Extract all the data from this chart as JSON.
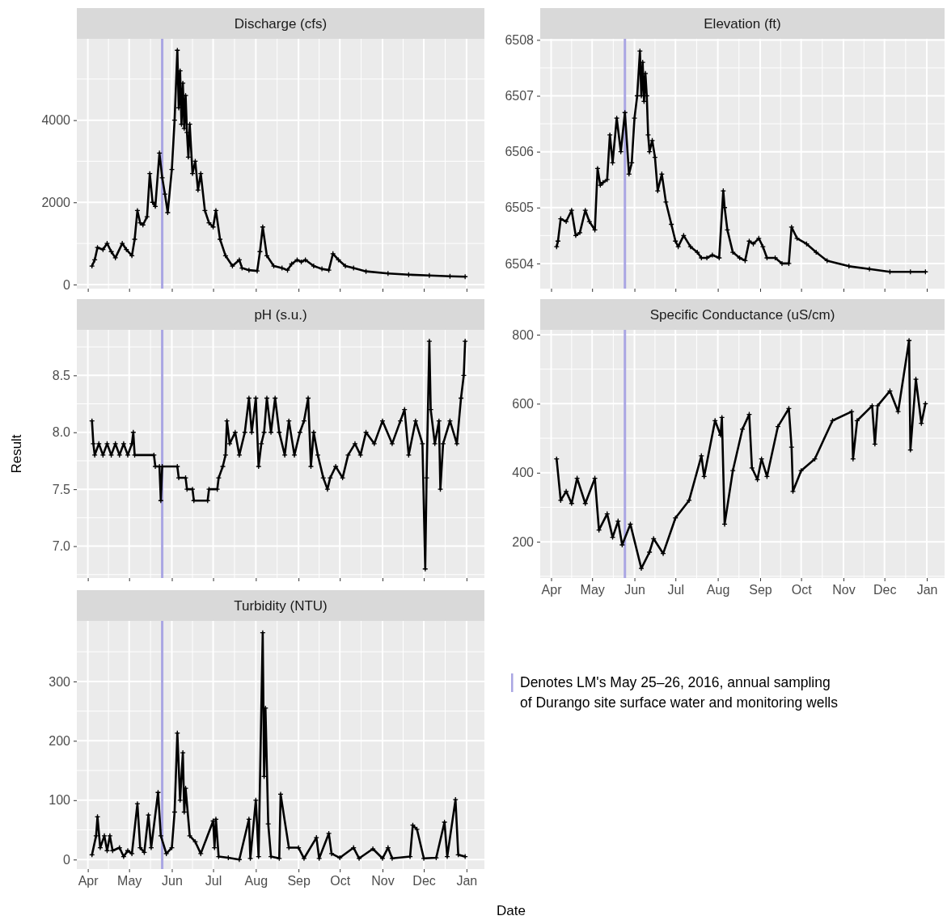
{
  "chart_data": [
    {
      "type": "line",
      "title": "Discharge (cfs)",
      "tick_labels": "y",
      "grid": true,
      "marker": "cross",
      "ylim": [
        -100,
        5980
      ],
      "yticks": [
        0,
        2000,
        4000
      ],
      "xlim": [
        "2016-03-24",
        "2017-01-14"
      ],
      "xticks": [
        {
          "value": "2016-04-01",
          "label": null
        },
        {
          "value": "2016-05-01",
          "label": null
        },
        {
          "value": "2016-06-01",
          "label": null
        },
        {
          "value": "2016-07-01",
          "label": null
        },
        {
          "value": "2016-08-01",
          "label": null
        },
        {
          "value": "2016-09-01",
          "label": null
        },
        {
          "value": "2016-10-01",
          "label": null
        },
        {
          "value": "2016-11-01",
          "label": null
        },
        {
          "value": "2016-12-01",
          "label": null
        },
        {
          "value": "2017-01-01",
          "label": null
        }
      ],
      "ref_lines": [
        {
          "axis": "x",
          "value": "2016-05-25",
          "color": "#aaa6e3"
        }
      ],
      "series": [
        {
          "color": "#000000",
          "x": [
            "2016-04-04",
            "2016-04-06",
            "2016-04-08",
            "2016-04-12",
            "2016-04-15",
            "2016-04-18",
            "2016-04-21",
            "2016-04-26",
            "2016-04-29",
            "2016-05-03",
            "2016-05-05",
            "2016-05-07",
            "2016-05-09",
            "2016-05-11",
            "2016-05-14",
            "2016-05-16",
            "2016-05-18",
            "2016-05-20",
            "2016-05-23",
            "2016-05-25",
            "2016-05-27",
            "2016-05-29",
            "2016-06-01",
            "2016-06-03",
            "2016-06-05",
            "2016-06-06",
            "2016-06-07",
            "2016-06-08",
            "2016-06-09",
            "2016-06-10",
            "2016-06-11",
            "2016-06-12",
            "2016-06-13",
            "2016-06-14",
            "2016-06-16",
            "2016-06-18",
            "2016-06-20",
            "2016-06-22",
            "2016-06-25",
            "2016-06-28",
            "2016-07-01",
            "2016-07-03",
            "2016-07-06",
            "2016-07-10",
            "2016-07-15",
            "2016-07-20",
            "2016-07-22",
            "2016-07-27",
            "2016-08-02",
            "2016-08-04",
            "2016-08-06",
            "2016-08-09",
            "2016-08-14",
            "2016-08-20",
            "2016-08-24",
            "2016-08-27",
            "2016-08-31",
            "2016-09-03",
            "2016-09-06",
            "2016-09-12",
            "2016-09-18",
            "2016-09-23",
            "2016-09-26",
            "2016-09-30",
            "2016-10-05",
            "2016-10-11",
            "2016-10-20",
            "2016-11-05",
            "2016-11-20",
            "2016-12-05",
            "2016-12-20",
            "2016-12-31"
          ],
          "values": [
            450,
            600,
            900,
            850,
            1000,
            800,
            650,
            1000,
            850,
            700,
            1100,
            1800,
            1500,
            1450,
            1650,
            2700,
            2000,
            1900,
            3200,
            2600,
            2200,
            1750,
            2800,
            4000,
            5700,
            4300,
            5200,
            3900,
            4900,
            3800,
            4600,
            3700,
            3100,
            3900,
            2700,
            3000,
            2300,
            2700,
            1800,
            1500,
            1400,
            1800,
            1100,
            700,
            450,
            600,
            400,
            350,
            330,
            800,
            1400,
            700,
            450,
            400,
            350,
            500,
            600,
            550,
            600,
            450,
            380,
            350,
            750,
            600,
            450,
            400,
            320,
            270,
            240,
            220,
            200,
            190
          ]
        }
      ]
    },
    {
      "type": "line",
      "title": "Elevation (ft)",
      "tick_labels": "y",
      "grid": true,
      "marker": "cross",
      "ylim": [
        6503.55,
        6508.02
      ],
      "yticks": [
        6504,
        6505,
        6506,
        6507,
        6508
      ],
      "xlim": [
        "2016-03-24",
        "2017-01-14"
      ],
      "xticks": [
        {
          "value": "2016-04-01",
          "label": null
        },
        {
          "value": "2016-05-01",
          "label": null
        },
        {
          "value": "2016-06-01",
          "label": null
        },
        {
          "value": "2016-07-01",
          "label": null
        },
        {
          "value": "2016-08-01",
          "label": null
        },
        {
          "value": "2016-09-01",
          "label": null
        },
        {
          "value": "2016-10-01",
          "label": null
        },
        {
          "value": "2016-11-01",
          "label": null
        },
        {
          "value": "2016-12-01",
          "label": null
        },
        {
          "value": "2017-01-01",
          "label": null
        }
      ],
      "ref_lines": [
        {
          "axis": "x",
          "value": "2016-05-25",
          "color": "#aaa6e3"
        }
      ],
      "series": [
        {
          "color": "#000000",
          "x": [
            "2016-04-05",
            "2016-04-06",
            "2016-04-08",
            "2016-04-12",
            "2016-04-16",
            "2016-04-19",
            "2016-04-22",
            "2016-04-26",
            "2016-04-29",
            "2016-05-03",
            "2016-05-05",
            "2016-05-07",
            "2016-05-09",
            "2016-05-12",
            "2016-05-14",
            "2016-05-16",
            "2016-05-19",
            "2016-05-22",
            "2016-05-25",
            "2016-05-28",
            "2016-05-30",
            "2016-06-01",
            "2016-06-03",
            "2016-06-05",
            "2016-06-06",
            "2016-06-07",
            "2016-06-08",
            "2016-06-09",
            "2016-06-10",
            "2016-06-11",
            "2016-06-12",
            "2016-06-14",
            "2016-06-16",
            "2016-06-18",
            "2016-06-21",
            "2016-06-24",
            "2016-06-28",
            "2016-07-01",
            "2016-07-03",
            "2016-07-07",
            "2016-07-12",
            "2016-07-17",
            "2016-07-20",
            "2016-07-24",
            "2016-07-28",
            "2016-08-02",
            "2016-08-05",
            "2016-08-06",
            "2016-08-08",
            "2016-08-12",
            "2016-08-17",
            "2016-08-21",
            "2016-08-24",
            "2016-08-27",
            "2016-08-31",
            "2016-09-03",
            "2016-09-06",
            "2016-09-12",
            "2016-09-17",
            "2016-09-22",
            "2016-09-24",
            "2016-09-28",
            "2016-10-05",
            "2016-10-12",
            "2016-10-20",
            "2016-11-05",
            "2016-11-20",
            "2016-12-05",
            "2016-12-20",
            "2016-12-31"
          ],
          "values": [
            6504.3,
            6504.4,
            6504.8,
            6504.75,
            6504.95,
            6504.5,
            6504.55,
            6504.95,
            6504.75,
            6504.6,
            6505.7,
            6505.4,
            6505.45,
            6505.5,
            6506.3,
            6505.8,
            6506.6,
            6506.0,
            6506.7,
            6505.6,
            6505.8,
            6506.6,
            6507.0,
            6507.8,
            6507.0,
            6507.6,
            6506.9,
            6507.4,
            6507.0,
            6506.3,
            6506.0,
            6506.2,
            6505.9,
            6505.3,
            6505.6,
            6505.1,
            6504.7,
            6504.4,
            6504.3,
            6504.5,
            6504.3,
            6504.2,
            6504.1,
            6504.1,
            6504.15,
            6504.1,
            6505.3,
            6505.0,
            6504.6,
            6504.2,
            6504.1,
            6504.05,
            6504.4,
            6504.35,
            6504.45,
            6504.3,
            6504.1,
            6504.1,
            6504.0,
            6504.0,
            6504.65,
            6504.45,
            6504.35,
            6504.2,
            6504.05,
            6503.95,
            6503.9,
            6503.85,
            6503.85,
            6503.85
          ]
        }
      ]
    },
    {
      "type": "line",
      "title": "pH (s.u.)",
      "ylabel": "Result",
      "tick_labels": "y",
      "grid": true,
      "marker": "cross",
      "ylim": [
        6.72,
        8.9
      ],
      "yticks": [
        {
          "value": 7,
          "label": "7.0"
        },
        {
          "value": 7.5,
          "label": "7.5"
        },
        {
          "value": 8,
          "label": "8.0"
        },
        {
          "value": 8.5,
          "label": "8.5"
        }
      ],
      "xlim": [
        "2016-03-24",
        "2017-01-14"
      ],
      "xticks": [
        {
          "value": "2016-04-01",
          "label": null
        },
        {
          "value": "2016-05-01",
          "label": null
        },
        {
          "value": "2016-06-01",
          "label": null
        },
        {
          "value": "2016-07-01",
          "label": null
        },
        {
          "value": "2016-08-01",
          "label": null
        },
        {
          "value": "2016-09-01",
          "label": null
        },
        {
          "value": "2016-10-01",
          "label": null
        },
        {
          "value": "2016-11-01",
          "label": null
        },
        {
          "value": "2016-12-01",
          "label": null
        },
        {
          "value": "2017-01-01",
          "label": null
        }
      ],
      "ref_lines": [
        {
          "axis": "x",
          "value": "2016-05-25",
          "color": "#aaa6e3"
        }
      ],
      "series": [
        {
          "color": "#000000",
          "x": [
            "2016-04-04",
            "2016-04-05",
            "2016-04-06",
            "2016-04-09",
            "2016-04-12",
            "2016-04-15",
            "2016-04-18",
            "2016-04-21",
            "2016-04-24",
            "2016-04-27",
            "2016-04-30",
            "2016-05-03",
            "2016-05-04",
            "2016-05-05",
            "2016-05-19",
            "2016-05-20",
            "2016-05-23",
            "2016-05-24",
            "2016-05-25",
            "2016-06-05",
            "2016-06-06",
            "2016-06-11",
            "2016-06-12",
            "2016-06-16",
            "2016-06-17",
            "2016-06-27",
            "2016-06-28",
            "2016-07-04",
            "2016-07-05",
            "2016-07-08",
            "2016-07-10",
            "2016-07-11",
            "2016-07-13",
            "2016-07-17",
            "2016-07-20",
            "2016-07-24",
            "2016-07-27",
            "2016-07-29",
            "2016-08-01",
            "2016-08-03",
            "2016-08-05",
            "2016-08-07",
            "2016-08-09",
            "2016-08-12",
            "2016-08-15",
            "2016-08-18",
            "2016-08-22",
            "2016-08-25",
            "2016-08-29",
            "2016-09-02",
            "2016-09-05",
            "2016-09-08",
            "2016-09-10",
            "2016-09-12",
            "2016-09-15",
            "2016-09-19",
            "2016-09-22",
            "2016-09-24",
            "2016-09-28",
            "2016-10-03",
            "2016-10-07",
            "2016-10-12",
            "2016-10-16",
            "2016-10-20",
            "2016-10-26",
            "2016-11-01",
            "2016-11-08",
            "2016-11-14",
            "2016-11-17",
            "2016-11-20",
            "2016-11-25",
            "2016-11-30",
            "2016-12-02",
            "2016-12-03",
            "2016-12-05",
            "2016-12-06",
            "2016-12-09",
            "2016-12-12",
            "2016-12-13",
            "2016-12-15",
            "2016-12-20",
            "2016-12-25",
            "2016-12-28",
            "2016-12-30",
            "2016-12-31"
          ],
          "values": [
            8.1,
            7.9,
            7.8,
            7.9,
            7.8,
            7.9,
            7.8,
            7.9,
            7.8,
            7.9,
            7.8,
            7.9,
            8.0,
            7.8,
            7.8,
            7.7,
            7.7,
            7.4,
            7.7,
            7.7,
            7.6,
            7.6,
            7.5,
            7.5,
            7.4,
            7.4,
            7.5,
            7.5,
            7.6,
            7.7,
            7.8,
            8.1,
            7.9,
            8.0,
            7.8,
            8.0,
            8.3,
            8.0,
            8.3,
            7.7,
            7.9,
            8.0,
            8.3,
            8.0,
            8.3,
            8.0,
            7.8,
            8.1,
            7.8,
            8.0,
            8.1,
            8.3,
            7.7,
            8.0,
            7.8,
            7.6,
            7.5,
            7.6,
            7.7,
            7.6,
            7.8,
            7.9,
            7.8,
            8.0,
            7.9,
            8.1,
            7.9,
            8.1,
            8.2,
            7.8,
            8.1,
            7.9,
            6.8,
            7.6,
            8.8,
            8.2,
            7.9,
            8.1,
            7.5,
            7.9,
            8.1,
            7.9,
            8.3,
            8.5,
            8.8
          ]
        }
      ]
    },
    {
      "type": "line",
      "title": "Specific Conductance (uS/cm)",
      "grid": true,
      "marker": "cross",
      "ylim": [
        95,
        814
      ],
      "yticks": [
        200,
        400,
        600,
        800
      ],
      "xlim": [
        "2016-03-24",
        "2017-01-14"
      ],
      "xticks": [
        {
          "value": "2016-04-01",
          "label": "Apr"
        },
        {
          "value": "2016-05-01",
          "label": "May"
        },
        {
          "value": "2016-06-01",
          "label": "Jun"
        },
        {
          "value": "2016-07-01",
          "label": "Jul"
        },
        {
          "value": "2016-08-01",
          "label": "Aug"
        },
        {
          "value": "2016-09-01",
          "label": "Sep"
        },
        {
          "value": "2016-10-01",
          "label": "Oct"
        },
        {
          "value": "2016-11-01",
          "label": "Nov"
        },
        {
          "value": "2016-12-01",
          "label": "Dec"
        },
        {
          "value": "2017-01-01",
          "label": "Jan"
        }
      ],
      "ref_lines": [
        {
          "axis": "x",
          "value": "2016-05-25",
          "color": "#aaa6e3"
        }
      ],
      "series": [
        {
          "color": "#000000",
          "x": [
            "2016-04-05",
            "2016-04-08",
            "2016-04-12",
            "2016-04-16",
            "2016-04-20",
            "2016-04-26",
            "2016-05-03",
            "2016-05-06",
            "2016-05-12",
            "2016-05-16",
            "2016-05-20",
            "2016-05-23",
            "2016-05-29",
            "2016-06-06",
            "2016-06-12",
            "2016-06-15",
            "2016-06-22",
            "2016-07-01",
            "2016-07-11",
            "2016-07-20",
            "2016-07-22",
            "2016-07-30",
            "2016-08-03",
            "2016-08-04",
            "2016-08-06",
            "2016-08-12",
            "2016-08-19",
            "2016-08-24",
            "2016-08-26",
            "2016-08-30",
            "2016-09-02",
            "2016-09-06",
            "2016-09-14",
            "2016-09-22",
            "2016-09-24",
            "2016-09-25",
            "2016-10-01",
            "2016-10-11",
            "2016-10-24",
            "2016-11-07",
            "2016-11-08",
            "2016-11-11",
            "2016-11-22",
            "2016-11-24",
            "2016-11-26",
            "2016-12-05",
            "2016-12-11",
            "2016-12-19",
            "2016-12-20",
            "2016-12-24",
            "2016-12-28",
            "2016-12-31"
          ],
          "values": [
            440,
            320,
            346,
            311,
            384,
            311,
            384,
            234,
            281,
            213,
            260,
            191,
            251,
            123,
            170,
            209,
            166,
            269,
            320,
            449,
            389,
            551,
            509,
            560,
            251,
            406,
            526,
            569,
            414,
            380,
            440,
            389,
            534,
            586,
            474,
            346,
            406,
            440,
            551,
            577,
            440,
            551,
            594,
            483,
            594,
            637,
            577,
            783,
            466,
            671,
            543,
            600
          ]
        }
      ]
    },
    {
      "type": "line",
      "title": "Turbidity (NTU)",
      "xlabel": "Date",
      "grid": true,
      "marker": "cross",
      "ylim": [
        -16,
        402
      ],
      "yticks": [
        0,
        100,
        200,
        300
      ],
      "xlim": [
        "2016-03-24",
        "2017-01-14"
      ],
      "xticks": [
        {
          "value": "2016-04-01",
          "label": "Apr"
        },
        {
          "value": "2016-05-01",
          "label": "May"
        },
        {
          "value": "2016-06-01",
          "label": "Jun"
        },
        {
          "value": "2016-07-01",
          "label": "Jul"
        },
        {
          "value": "2016-08-01",
          "label": "Aug"
        },
        {
          "value": "2016-09-01",
          "label": "Sep"
        },
        {
          "value": "2016-10-01",
          "label": "Oct"
        },
        {
          "value": "2016-11-01",
          "label": "Nov"
        },
        {
          "value": "2016-12-01",
          "label": "Dec"
        },
        {
          "value": "2017-01-01",
          "label": "Jan"
        }
      ],
      "ref_lines": [
        {
          "axis": "x",
          "value": "2016-05-25",
          "color": "#aaa6e3"
        }
      ],
      "series": [
        {
          "color": "#000000",
          "x": [
            "2016-04-04",
            "2016-04-07",
            "2016-04-08",
            "2016-04-10",
            "2016-04-13",
            "2016-04-15",
            "2016-04-17",
            "2016-04-19",
            "2016-04-24",
            "2016-04-27",
            "2016-04-30",
            "2016-05-03",
            "2016-05-07",
            "2016-05-09",
            "2016-05-12",
            "2016-05-15",
            "2016-05-17",
            "2016-05-22",
            "2016-05-24",
            "2016-05-28",
            "2016-06-01",
            "2016-06-03",
            "2016-06-05",
            "2016-06-07",
            "2016-06-09",
            "2016-06-10",
            "2016-06-11",
            "2016-06-14",
            "2016-06-18",
            "2016-06-22",
            "2016-07-01",
            "2016-07-02",
            "2016-07-03",
            "2016-07-05",
            "2016-07-12",
            "2016-07-20",
            "2016-07-27",
            "2016-07-28",
            "2016-08-01",
            "2016-08-03",
            "2016-08-06",
            "2016-08-07",
            "2016-08-08",
            "2016-08-10",
            "2016-08-12",
            "2016-08-18",
            "2016-08-19",
            "2016-08-25",
            "2016-09-01",
            "2016-09-05",
            "2016-09-14",
            "2016-09-16",
            "2016-09-23",
            "2016-09-25",
            "2016-10-01",
            "2016-10-11",
            "2016-10-15",
            "2016-10-25",
            "2016-11-01",
            "2016-11-05",
            "2016-11-08",
            "2016-11-21",
            "2016-11-23",
            "2016-11-26",
            "2016-12-01",
            "2016-12-10",
            "2016-12-16",
            "2016-12-18",
            "2016-12-24",
            "2016-12-26",
            "2016-12-31"
          ],
          "values": [
            8,
            40,
            72,
            20,
            40,
            15,
            40,
            15,
            20,
            5,
            15,
            10,
            94,
            20,
            12,
            75,
            20,
            113,
            40,
            10,
            20,
            80,
            213,
            100,
            180,
            80,
            120,
            40,
            30,
            10,
            65,
            20,
            68,
            5,
            3,
            0,
            68,
            2,
            100,
            5,
            382,
            140,
            255,
            60,
            5,
            2,
            110,
            20,
            20,
            2,
            37,
            2,
            44,
            10,
            3,
            20,
            2,
            18,
            2,
            20,
            2,
            5,
            58,
            51,
            2,
            3,
            63,
            5,
            101,
            8,
            5
          ]
        }
      ]
    },
    {
      "type": "other",
      "annotations": [
        "Denotes LM's May 25–26, 2016, annual sampling\nof Durango site surface water and monitoring wells"
      ],
      "color": "#aaa6e3"
    }
  ]
}
